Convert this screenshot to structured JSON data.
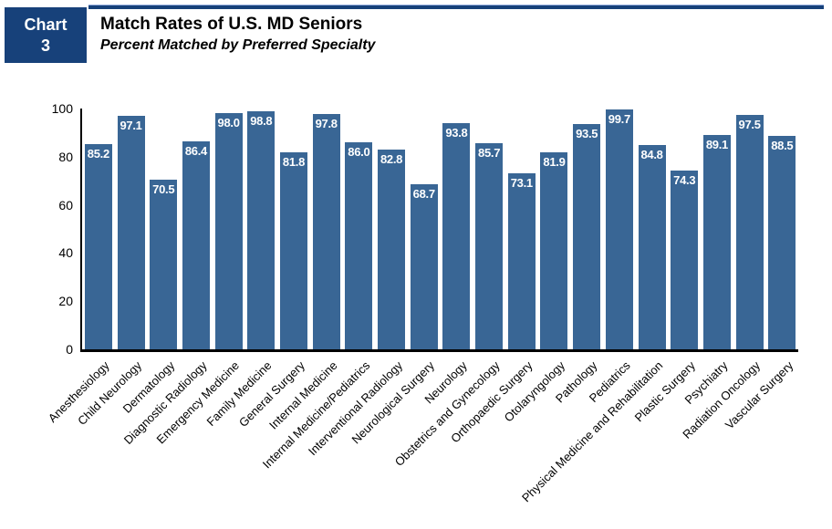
{
  "header": {
    "tag_line1": "Chart",
    "tag_line2": "3",
    "title": "Match Rates of U.S. MD Seniors",
    "subtitle": "Percent Matched by Preferred Specialty"
  },
  "colors": {
    "bar": "#396695",
    "header_box": "#17417A",
    "top_rule": "#17417A",
    "top_rule_highlight": "#8FAADC",
    "axis": "#000000",
    "value_label": "#FFFFFF",
    "text": "#000000"
  },
  "chart_data": {
    "type": "bar",
    "title": "Match Rates of U.S. MD Seniors",
    "subtitle": "Percent Matched by Preferred Specialty",
    "categories": [
      "Anesthesiology",
      "Child Neurology",
      "Dermatology",
      "Diagnostic Radiology",
      "Emergency Medicine",
      "Family Medicine",
      "General Surgery",
      "Internal Medicine",
      "Internal Medicine/Pediatrics",
      "Interventional Radiology",
      "Neurological Surgery",
      "Neurology",
      "Obstetrics and Gynecology",
      "Orthopaedic Surgery",
      "Otolaryngology",
      "Pathology",
      "Pediatrics",
      "Physical Medicine and Rehabilitation",
      "Plastic Surgery",
      "Psychiatry",
      "Radiation Oncology",
      "Vascular Surgery"
    ],
    "values": [
      85.2,
      97.1,
      70.5,
      86.4,
      98.0,
      98.8,
      81.8,
      97.8,
      86.0,
      82.8,
      68.7,
      93.8,
      85.7,
      73.1,
      81.9,
      93.5,
      99.7,
      84.8,
      74.3,
      89.1,
      97.5,
      88.5
    ],
    "value_label_decimals": 1,
    "value_label_position": "inside-top",
    "xlabel": "",
    "ylabel": "",
    "ylim": [
      0,
      100
    ],
    "yticks": [
      0,
      20,
      40,
      60,
      80,
      100
    ],
    "grid": false,
    "legend": false,
    "xtick_rotation_deg": 45
  }
}
